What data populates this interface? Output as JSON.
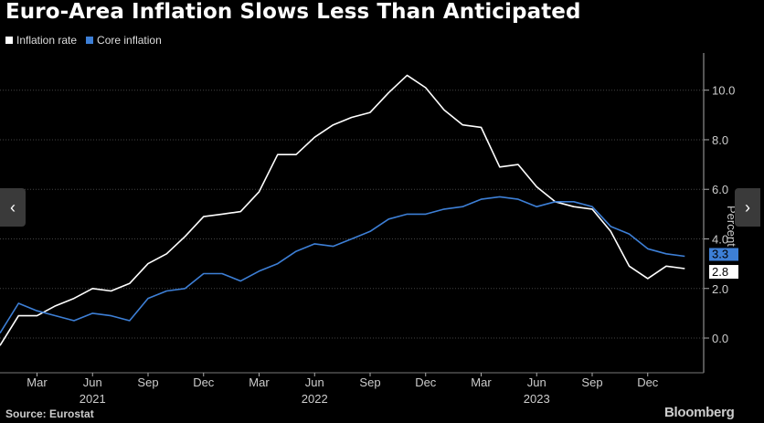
{
  "title": "Euro-Area Inflation Slows Less Than Anticipated",
  "source": "Source: Eurostat",
  "brand": "Bloomberg",
  "legend": [
    {
      "label": "Inflation rate",
      "color": "#ffffff"
    },
    {
      "label": "Core inflation",
      "color": "#3d7fd6"
    }
  ],
  "nav": {
    "prev": "‹",
    "next": "›"
  },
  "chart_data": {
    "type": "line",
    "title": "Euro-Area Inflation Slows Less Than Anticipated",
    "ylabel": "Percent",
    "ylim": [
      -1.4,
      11.5
    ],
    "yticks": [
      0,
      2,
      4,
      6,
      8,
      10
    ],
    "ytick_labels": [
      "0.0",
      "2.0",
      "4.0",
      "6.0",
      "8.0",
      "10.0"
    ],
    "xtick_labels": [
      "Mar",
      "Jun",
      "Sep",
      "Dec",
      "Mar",
      "Jun",
      "Sep",
      "Dec",
      "Mar",
      "Jun",
      "Sep",
      "Dec"
    ],
    "xtick_month_index": [
      2,
      5,
      8,
      11,
      14,
      17,
      20,
      23,
      26,
      29,
      32,
      35
    ],
    "year_labels": [
      "2021",
      "2022",
      "2023"
    ],
    "year_month_index": [
      5,
      17,
      29
    ],
    "x": [
      "2020-12",
      "2021-01",
      "2021-02",
      "2021-03",
      "2021-04",
      "2021-05",
      "2021-06",
      "2021-07",
      "2021-08",
      "2021-09",
      "2021-10",
      "2021-11",
      "2021-12",
      "2022-01",
      "2022-02",
      "2022-03",
      "2022-04",
      "2022-05",
      "2022-06",
      "2022-07",
      "2022-08",
      "2022-09",
      "2022-10",
      "2022-11",
      "2022-12",
      "2023-01",
      "2023-02",
      "2023-03",
      "2023-04",
      "2023-05",
      "2023-06",
      "2023-07",
      "2023-08",
      "2023-09",
      "2023-10",
      "2023-11",
      "2023-12",
      "2024-01"
    ],
    "series": [
      {
        "name": "Inflation rate",
        "color": "#ffffff",
        "values": [
          -0.3,
          0.9,
          0.9,
          1.3,
          1.6,
          2.0,
          1.9,
          2.2,
          3.0,
          3.4,
          4.1,
          4.9,
          5.0,
          5.1,
          5.9,
          7.4,
          7.4,
          8.1,
          8.6,
          8.9,
          9.1,
          9.9,
          10.6,
          10.1,
          9.2,
          8.6,
          8.5,
          6.9,
          7.0,
          6.1,
          5.5,
          5.3,
          5.2,
          4.3,
          2.9,
          2.4,
          2.9,
          2.8
        ]
      },
      {
        "name": "Core inflation",
        "color": "#3d7fd6",
        "values": [
          0.2,
          1.4,
          1.1,
          0.9,
          0.7,
          1.0,
          0.9,
          0.7,
          1.6,
          1.9,
          2.0,
          2.6,
          2.6,
          2.3,
          2.7,
          3.0,
          3.5,
          3.8,
          3.7,
          4.0,
          4.3,
          4.8,
          5.0,
          5.0,
          5.2,
          5.3,
          5.6,
          5.7,
          5.6,
          5.3,
          5.5,
          5.5,
          5.3,
          4.5,
          4.2,
          3.6,
          3.4,
          3.3
        ]
      }
    ],
    "end_labels": [
      "3.3",
      "2.8"
    ],
    "grid": true
  }
}
